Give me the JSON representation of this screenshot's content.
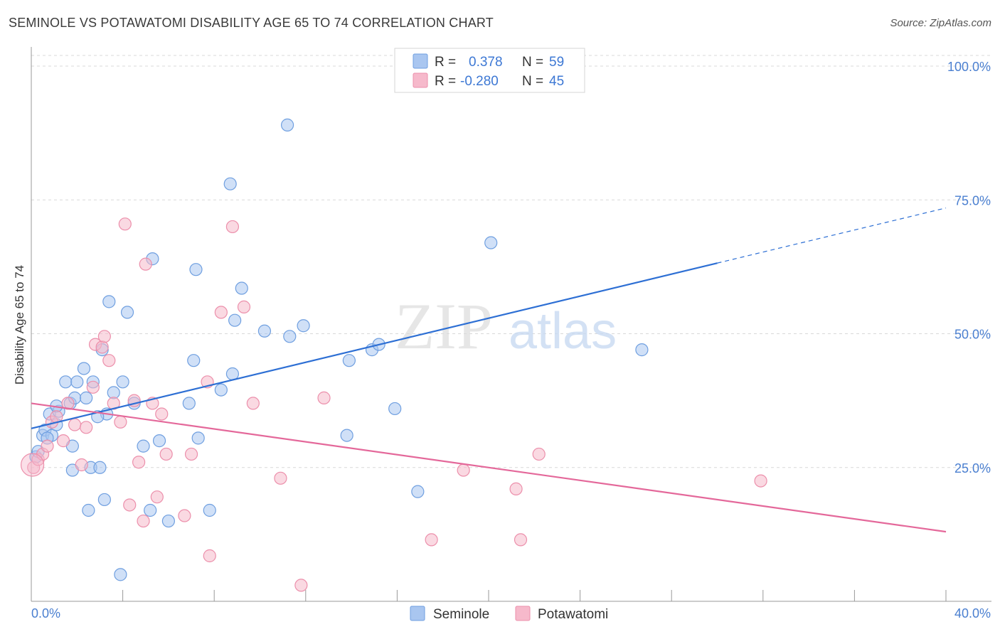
{
  "title": "SEMINOLE VS POTAWATOMI DISABILITY AGE 65 TO 74 CORRELATION CHART",
  "source": "Source: ZipAtlas.com",
  "watermark": {
    "zip": "ZIP",
    "atlas": "atlas"
  },
  "colors": {
    "seminole_fill": "#a9c6f0",
    "seminole_stroke": "#6f9fe0",
    "seminole_line": "#2d6fd4",
    "potawatomi_fill": "#f6b9cb",
    "potawatomi_stroke": "#ec8fab",
    "potawatomi_line": "#e4689a",
    "grid": "#d8d8d8",
    "tick_text": "#4a7fd0"
  },
  "legend": {
    "r_label": "R =",
    "n_label": "N =",
    "rows": [
      {
        "r": "0.378",
        "n": "59"
      },
      {
        "r": "-0.280",
        "n": "45"
      }
    ]
  },
  "chart_data": {
    "type": "scatter",
    "title": "SEMINOLE VS POTAWATOMI DISABILITY AGE 65 TO 74 CORRELATION CHART",
    "xlabel": "",
    "ylabel": "Disability Age 65 to 74",
    "xlim": [
      0,
      40
    ],
    "ylim": [
      0,
      102
    ],
    "x_tick_labels": [
      "0.0%",
      "40.0%"
    ],
    "y_ticks": [
      25,
      50,
      75,
      100
    ],
    "y_tick_labels": [
      "25.0%",
      "50.0%",
      "75.0%",
      "100.0%"
    ],
    "grid": "horizontal dashed",
    "legend_position": "top-center",
    "series": [
      {
        "name": "Seminole",
        "r": 0.378,
        "n": 59,
        "trend": {
          "x0": 0,
          "y0": 32.3,
          "x1": 30.0,
          "y1": 63.2,
          "dashed_to_x": 40.0,
          "dashed_to_y": 73.5
        },
        "points": [
          [
            0.2,
            27
          ],
          [
            0.3,
            28
          ],
          [
            0.5,
            31
          ],
          [
            0.6,
            32
          ],
          [
            0.8,
            35
          ],
          [
            0.9,
            31
          ],
          [
            1.1,
            33
          ],
          [
            1.2,
            35.5
          ],
          [
            1.5,
            41
          ],
          [
            1.7,
            37
          ],
          [
            1.8,
            29
          ],
          [
            1.9,
            38
          ],
          [
            2.0,
            41
          ],
          [
            2.3,
            43.5
          ],
          [
            2.4,
            38
          ],
          [
            2.7,
            41
          ],
          [
            2.6,
            25
          ],
          [
            2.5,
            17
          ],
          [
            3.0,
            25
          ],
          [
            3.1,
            47
          ],
          [
            3.2,
            19
          ],
          [
            3.3,
            35
          ],
          [
            3.4,
            56
          ],
          [
            3.6,
            39
          ],
          [
            4.0,
            41
          ],
          [
            4.2,
            54
          ],
          [
            4.5,
            37
          ],
          [
            4.9,
            29
          ],
          [
            5.2,
            17
          ],
          [
            5.3,
            64
          ],
          [
            5.6,
            30
          ],
          [
            6.0,
            15
          ],
          [
            6.9,
            37
          ],
          [
            7.1,
            45
          ],
          [
            7.2,
            62
          ],
          [
            7.3,
            30.5
          ],
          [
            7.8,
            17
          ],
          [
            8.3,
            39.5
          ],
          [
            8.7,
            78
          ],
          [
            8.8,
            42.5
          ],
          [
            8.9,
            52.5
          ],
          [
            9.2,
            58.5
          ],
          [
            10.2,
            50.5
          ],
          [
            11.2,
            89
          ],
          [
            11.3,
            49.5
          ],
          [
            11.9,
            51.5
          ],
          [
            13.8,
            31
          ],
          [
            13.9,
            45
          ],
          [
            14.9,
            47
          ],
          [
            15.2,
            48
          ],
          [
            15.9,
            36
          ],
          [
            16.9,
            20.5
          ],
          [
            20.1,
            67
          ],
          [
            26.7,
            47
          ],
          [
            3.9,
            5
          ],
          [
            1.8,
            24.5
          ],
          [
            2.9,
            34.5
          ],
          [
            1.1,
            36.5
          ],
          [
            0.7,
            30.5
          ]
        ]
      },
      {
        "name": "Potawatomi",
        "r": -0.28,
        "n": 45,
        "trend": {
          "x0": 0,
          "y0": 37.0,
          "x1": 40.0,
          "y1": 13.0
        },
        "points": [
          [
            0.1,
            25
          ],
          [
            0.3,
            26.5
          ],
          [
            0.5,
            27.5
          ],
          [
            0.7,
            29
          ],
          [
            0.9,
            33.5
          ],
          [
            1.1,
            34.5
          ],
          [
            1.4,
            30
          ],
          [
            1.6,
            37
          ],
          [
            1.9,
            33
          ],
          [
            2.2,
            25.5
          ],
          [
            2.4,
            32.5
          ],
          [
            2.7,
            40
          ],
          [
            2.8,
            48
          ],
          [
            3.1,
            47.5
          ],
          [
            3.2,
            49.5
          ],
          [
            3.4,
            45
          ],
          [
            3.6,
            37
          ],
          [
            3.9,
            33.5
          ],
          [
            4.1,
            70.5
          ],
          [
            4.3,
            18
          ],
          [
            4.5,
            37.5
          ],
          [
            4.7,
            26
          ],
          [
            4.9,
            15
          ],
          [
            5.0,
            63
          ],
          [
            5.3,
            37
          ],
          [
            5.5,
            19.5
          ],
          [
            5.7,
            35
          ],
          [
            5.9,
            27.5
          ],
          [
            6.7,
            16
          ],
          [
            7.0,
            27.5
          ],
          [
            7.7,
            41
          ],
          [
            7.8,
            8.5
          ],
          [
            8.3,
            54
          ],
          [
            8.8,
            70
          ],
          [
            9.3,
            55
          ],
          [
            9.7,
            37
          ],
          [
            10.9,
            23
          ],
          [
            11.8,
            3
          ],
          [
            12.8,
            38
          ],
          [
            17.5,
            11.5
          ],
          [
            18.9,
            24.5
          ],
          [
            21.2,
            21
          ],
          [
            21.4,
            11.5
          ],
          [
            22.2,
            27.5
          ],
          [
            31.9,
            22.5
          ]
        ]
      }
    ]
  },
  "bottom_legend": [
    {
      "label": "Seminole"
    },
    {
      "label": "Potawatomi"
    }
  ]
}
